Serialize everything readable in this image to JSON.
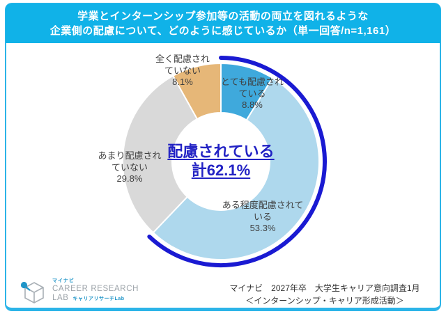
{
  "title": {
    "line1": "学業とインターンシップ参加等の活動の両立を図れるような",
    "line2": "企業側の配慮について、どのように感じているか（単一回答/n=1,161）"
  },
  "chart_data": {
    "type": "pie",
    "subtype": "donut",
    "start_angle_deg": 0,
    "direction": "clockwise",
    "segments": [
      {
        "label": "とても配慮されている",
        "value": 8.8,
        "color": "#3fa9dc"
      },
      {
        "label": "ある程度配慮されている",
        "value": 53.3,
        "color": "#aed8ed"
      },
      {
        "label": "あまり配慮されていない",
        "value": 29.8,
        "color": "#d9d9d9"
      },
      {
        "label": "全く配慮されていない",
        "value": 8.1,
        "color": "#e6b778"
      }
    ],
    "callout": {
      "label": "配慮されている",
      "total_label": "計62.1%",
      "value": 62.1,
      "arc_color": "#1a1ad2"
    }
  },
  "chart_labels": {
    "totemo": "とても配慮され\nている\n8.8%",
    "aruteido": "ある程度配慮されて\nいる\n53.3%",
    "amari": "あまり配慮され\nていない\n29.8%",
    "mattaku": "全く配慮され\nていない\n8.1%"
  },
  "center": {
    "line1": "配慮されている",
    "line2": "計62.1%"
  },
  "logo": {
    "brand_small": "マイナビ",
    "brand_main": "CAREER RESEARCH",
    "brand_sub": "LAB",
    "brand_sub2": "キャリアリサーチLab"
  },
  "source": {
    "line1": "マイナビ　2027年卒　大学生キャリア意向調査1月",
    "line2": "＜インターンシップ・キャリア形成活動＞"
  },
  "colors": {
    "banner_bg": "#10b2e8",
    "frame_border": "#2cb4e8",
    "banner_text": "#ffffff",
    "label_text": "#3f3f3f",
    "center_text": "#2222c4",
    "source_text": "#333333",
    "logo_gray": "#9ca3a9",
    "logo_teal": "#2095c8"
  }
}
